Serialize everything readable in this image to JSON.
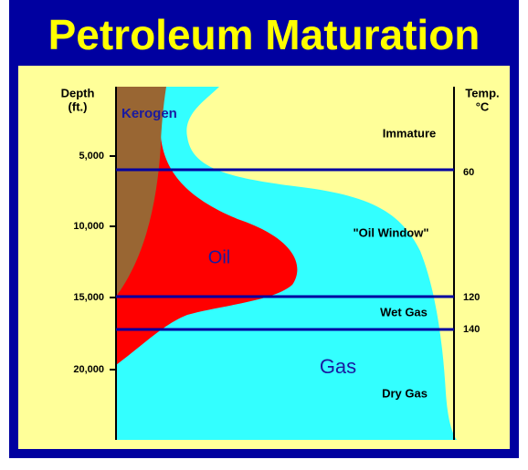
{
  "title": "Petroleum Maturation",
  "depth_axis": {
    "label": [
      "Depth",
      "(ft.)"
    ],
    "ticks": [
      "5,000",
      "10,000",
      "15,000",
      "20,000"
    ]
  },
  "temp_axis": {
    "label": [
      "Temp.",
      "°C"
    ],
    "ticks": [
      "60",
      "120",
      "140"
    ]
  },
  "regions": {
    "kerogen": "Kerogen",
    "oil": "Oil",
    "gas": "Gas"
  },
  "zones": [
    "Immature",
    "\"Oil Window\"",
    "Wet Gas",
    "Dry Gas"
  ]
}
